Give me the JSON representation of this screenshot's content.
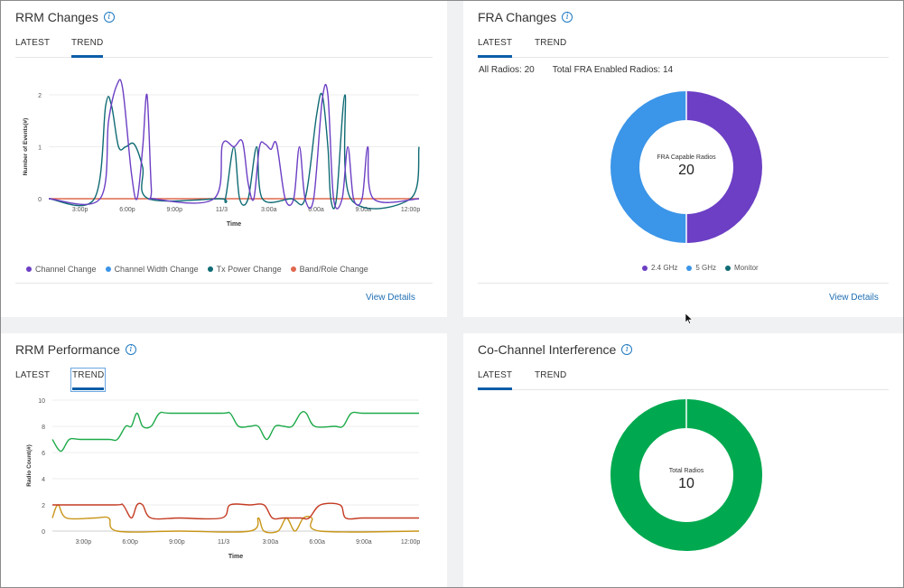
{
  "rrm_changes": {
    "title": "RRM Changes",
    "tabs": [
      {
        "label": "LATEST",
        "active": false
      },
      {
        "label": "TREND",
        "active": true
      }
    ],
    "view_details": "View Details",
    "legend": [
      {
        "name": "Channel Change",
        "color": "#6c3fc4"
      },
      {
        "name": "Channel Width Change",
        "color": "#3b95e8"
      },
      {
        "name": "Tx Power Change",
        "color": "#0f6b74"
      },
      {
        "name": "Band/Role Change",
        "color": "#e0694f"
      }
    ]
  },
  "fra_changes": {
    "title": "FRA Changes",
    "tabs": [
      {
        "label": "LATEST",
        "active": true
      },
      {
        "label": "TREND",
        "active": false
      }
    ],
    "stats": {
      "all_radios": "All Radios: 20",
      "fra_enabled": "Total FRA Enabled Radios: 14"
    },
    "center_label": "FRA Capable Radios",
    "center_value": "20",
    "view_details": "View Details",
    "legend": [
      {
        "name": "2.4 GHz",
        "color": "#6c3fc4"
      },
      {
        "name": "5 GHz",
        "color": "#3b95e8"
      },
      {
        "name": "Monitor",
        "color": "#0f6b74"
      }
    ]
  },
  "rrm_performance": {
    "title": "RRM Performance",
    "tabs": [
      {
        "label": "LATEST",
        "active": false
      },
      {
        "label": "TREND",
        "active": true
      }
    ]
  },
  "co_channel": {
    "title": "Co-Channel Interference",
    "tabs": [
      {
        "label": "LATEST",
        "active": true
      },
      {
        "label": "TREND",
        "active": false
      }
    ],
    "center_label": "Total Radios",
    "center_value": "10"
  },
  "chart_data": [
    {
      "type": "line",
      "xlabel": "Time",
      "ylabel": "Number of Events(#)",
      "x_ticks": [
        "3:00p",
        "6:00p",
        "9:00p",
        "11/3",
        "3:00a",
        "6:00a",
        "9:00a",
        "12:00p"
      ],
      "ylim": [
        0,
        2
      ],
      "y_ticks": [
        0,
        1,
        2
      ],
      "series": [
        {
          "name": "Channel Change",
          "color": "#6c3fc4",
          "points": [
            [
              0,
              0
            ],
            [
              1.8,
              0
            ],
            [
              2.1,
              1.5
            ],
            [
              2.4,
              2.2
            ],
            [
              2.6,
              2.1
            ],
            [
              2.9,
              0.5
            ],
            [
              3.1,
              0
            ],
            [
              3.3,
              1.0
            ],
            [
              3.45,
              2.0
            ],
            [
              3.6,
              0.2
            ],
            [
              3.7,
              0
            ],
            [
              5.8,
              0
            ],
            [
              6.1,
              1.05
            ],
            [
              6.5,
              1.0
            ],
            [
              6.8,
              1.1
            ],
            [
              7.0,
              0.3
            ],
            [
              7.2,
              0
            ],
            [
              7.4,
              1.0
            ],
            [
              7.6,
              1.05
            ],
            [
              7.8,
              0.95
            ],
            [
              8.0,
              1.05
            ],
            [
              8.3,
              0
            ],
            [
              8.6,
              0
            ],
            [
              8.8,
              1.0
            ],
            [
              9.0,
              0
            ],
            [
              9.3,
              0
            ],
            [
              9.6,
              1.9
            ],
            [
              9.8,
              2.0
            ],
            [
              10.0,
              0
            ],
            [
              10.3,
              0
            ],
            [
              10.5,
              1.0
            ],
            [
              10.7,
              0
            ],
            [
              11.0,
              0
            ],
            [
              11.2,
              1.0
            ],
            [
              11.4,
              0
            ],
            [
              13.0,
              0
            ]
          ]
        },
        {
          "name": "Tx Power Change",
          "color": "#0f6b74",
          "points": [
            [
              0,
              0
            ],
            [
              1.6,
              0
            ],
            [
              2.0,
              1.8
            ],
            [
              2.2,
              1.8
            ],
            [
              2.45,
              1.0
            ],
            [
              2.7,
              1.0
            ],
            [
              3.0,
              1.05
            ],
            [
              3.3,
              0.6
            ],
            [
              3.5,
              0
            ],
            [
              6.0,
              0
            ],
            [
              6.2,
              0
            ],
            [
              6.5,
              1.0
            ],
            [
              6.7,
              0
            ],
            [
              7.0,
              0
            ],
            [
              7.3,
              1.0
            ],
            [
              7.5,
              0
            ],
            [
              8.5,
              0
            ],
            [
              9.0,
              0
            ],
            [
              9.4,
              1.6
            ],
            [
              9.6,
              2.0
            ],
            [
              9.8,
              1.0
            ],
            [
              9.9,
              0
            ],
            [
              10.1,
              0
            ],
            [
              10.4,
              2.0
            ],
            [
              10.6,
              0
            ],
            [
              12.7,
              0
            ],
            [
              13.0,
              1.0
            ]
          ]
        },
        {
          "name": "Band/Role Change",
          "color": "#e0694f",
          "points": [
            [
              0,
              0
            ],
            [
              13,
              0
            ]
          ]
        }
      ]
    },
    {
      "type": "pie",
      "title": "FRA Changes",
      "donut": true,
      "slices": [
        {
          "name": "2.4 GHz",
          "value": 10,
          "color": "#6c3fc4"
        },
        {
          "name": "5 GHz",
          "value": 10,
          "color": "#3b95e8"
        },
        {
          "name": "Monitor",
          "value": 0,
          "color": "#0f6b74"
        }
      ]
    },
    {
      "type": "line",
      "xlabel": "Time",
      "ylabel": "Radio Count(#)",
      "x_ticks": [
        "3:00p",
        "6:00p",
        "9:00p",
        "11/3",
        "3:00a",
        "6:00a",
        "9:00a",
        "12:00p"
      ],
      "ylim": [
        0,
        10
      ],
      "y_ticks": [
        0,
        2,
        4,
        6,
        8,
        10
      ],
      "series": [
        {
          "color": "#1eaa4a",
          "points": [
            [
              0,
              7.0
            ],
            [
              0.3,
              6.1
            ],
            [
              0.6,
              7.0
            ],
            [
              1.0,
              7.0
            ],
            [
              2.0,
              7.0
            ],
            [
              2.3,
              7.0
            ],
            [
              2.6,
              8.0
            ],
            [
              2.8,
              8.0
            ],
            [
              3.0,
              9.0
            ],
            [
              3.2,
              8.0
            ],
            [
              3.5,
              8.0
            ],
            [
              3.8,
              9.0
            ],
            [
              4.2,
              9.0
            ],
            [
              6.0,
              9.0
            ],
            [
              6.3,
              9.0
            ],
            [
              6.6,
              8.0
            ],
            [
              7.0,
              8.0
            ],
            [
              7.3,
              8.0
            ],
            [
              7.6,
              7.0
            ],
            [
              7.9,
              8.0
            ],
            [
              8.2,
              8.0
            ],
            [
              8.5,
              8.0
            ],
            [
              8.8,
              9.0
            ],
            [
              9.0,
              9.0
            ],
            [
              9.3,
              8.0
            ],
            [
              10.0,
              8.0
            ],
            [
              10.3,
              8.0
            ],
            [
              10.6,
              9.0
            ],
            [
              11.0,
              9.0
            ],
            [
              12.0,
              9.0
            ],
            [
              13.0,
              9.0
            ]
          ]
        },
        {
          "color": "#c43b22",
          "points": [
            [
              0,
              2.0
            ],
            [
              2.2,
              2.0
            ],
            [
              2.5,
              2.0
            ],
            [
              2.8,
              1.0
            ],
            [
              3.0,
              2.0
            ],
            [
              3.2,
              2.0
            ],
            [
              3.5,
              1.0
            ],
            [
              4.5,
              1.0
            ],
            [
              6.0,
              1.0
            ],
            [
              6.3,
              2.0
            ],
            [
              7.0,
              2.0
            ],
            [
              7.5,
              2.0
            ],
            [
              7.8,
              1.0
            ],
            [
              8.2,
              1.0
            ],
            [
              8.8,
              1.0
            ],
            [
              9.1,
              1.0
            ],
            [
              9.5,
              2.0
            ],
            [
              10.2,
              2.0
            ],
            [
              10.4,
              1.0
            ],
            [
              11.0,
              1.0
            ],
            [
              12.0,
              1.0
            ],
            [
              13.0,
              1.0
            ]
          ]
        },
        {
          "color": "#c9961a",
          "points": [
            [
              0,
              1.0
            ],
            [
              0.2,
              2.0
            ],
            [
              0.5,
              1.0
            ],
            [
              1.5,
              1.0
            ],
            [
              2.0,
              1.0
            ],
            [
              2.3,
              0
            ],
            [
              4.5,
              0
            ],
            [
              7.0,
              0
            ],
            [
              7.3,
              1.0
            ],
            [
              7.5,
              0
            ],
            [
              8.0,
              0
            ],
            [
              8.3,
              1.0
            ],
            [
              8.6,
              0
            ],
            [
              8.9,
              1.0
            ],
            [
              9.2,
              1.0
            ],
            [
              9.5,
              0
            ],
            [
              13.0,
              0
            ]
          ]
        }
      ]
    },
    {
      "type": "pie",
      "title": "Co-Channel Interference",
      "donut": true,
      "slices": [
        {
          "value": 10,
          "color": "#00a94f"
        }
      ]
    }
  ]
}
